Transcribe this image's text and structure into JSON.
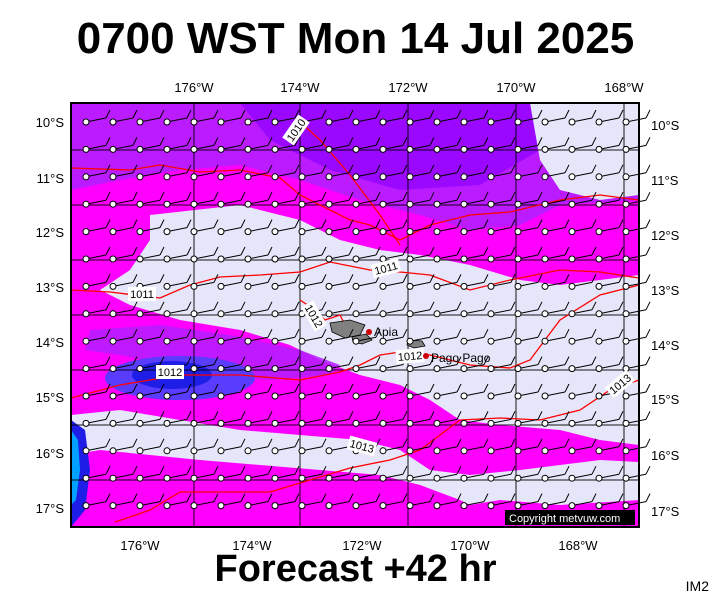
{
  "title": "0700 WST Mon 14 Jul 2025",
  "footer": "Forecast +42 hr",
  "model_tag": "IM2",
  "copyright": "Copyright metvuw.com",
  "lon_labels": [
    "176°W",
    "174°W",
    "172°W",
    "170°W",
    "168°W"
  ],
  "lat_labels": [
    "10°S",
    "11°S",
    "12°S",
    "13°S",
    "14°S",
    "15°S",
    "16°S",
    "17°S"
  ],
  "isobar_labels": [
    "1010",
    "1011",
    "1011",
    "1012",
    "1012",
    "1012",
    "1013",
    "1013"
  ],
  "places": [
    {
      "name": "Apia"
    },
    {
      "name": "Pago Pago"
    }
  ],
  "colors": {
    "magenta": "#ff00ff",
    "violet": "#b41eff",
    "purple": "#8c00ff",
    "pale": "#e6e6fa",
    "blue": "#1e1ee6",
    "isobar": "#ff0000",
    "island": "#808080"
  }
}
